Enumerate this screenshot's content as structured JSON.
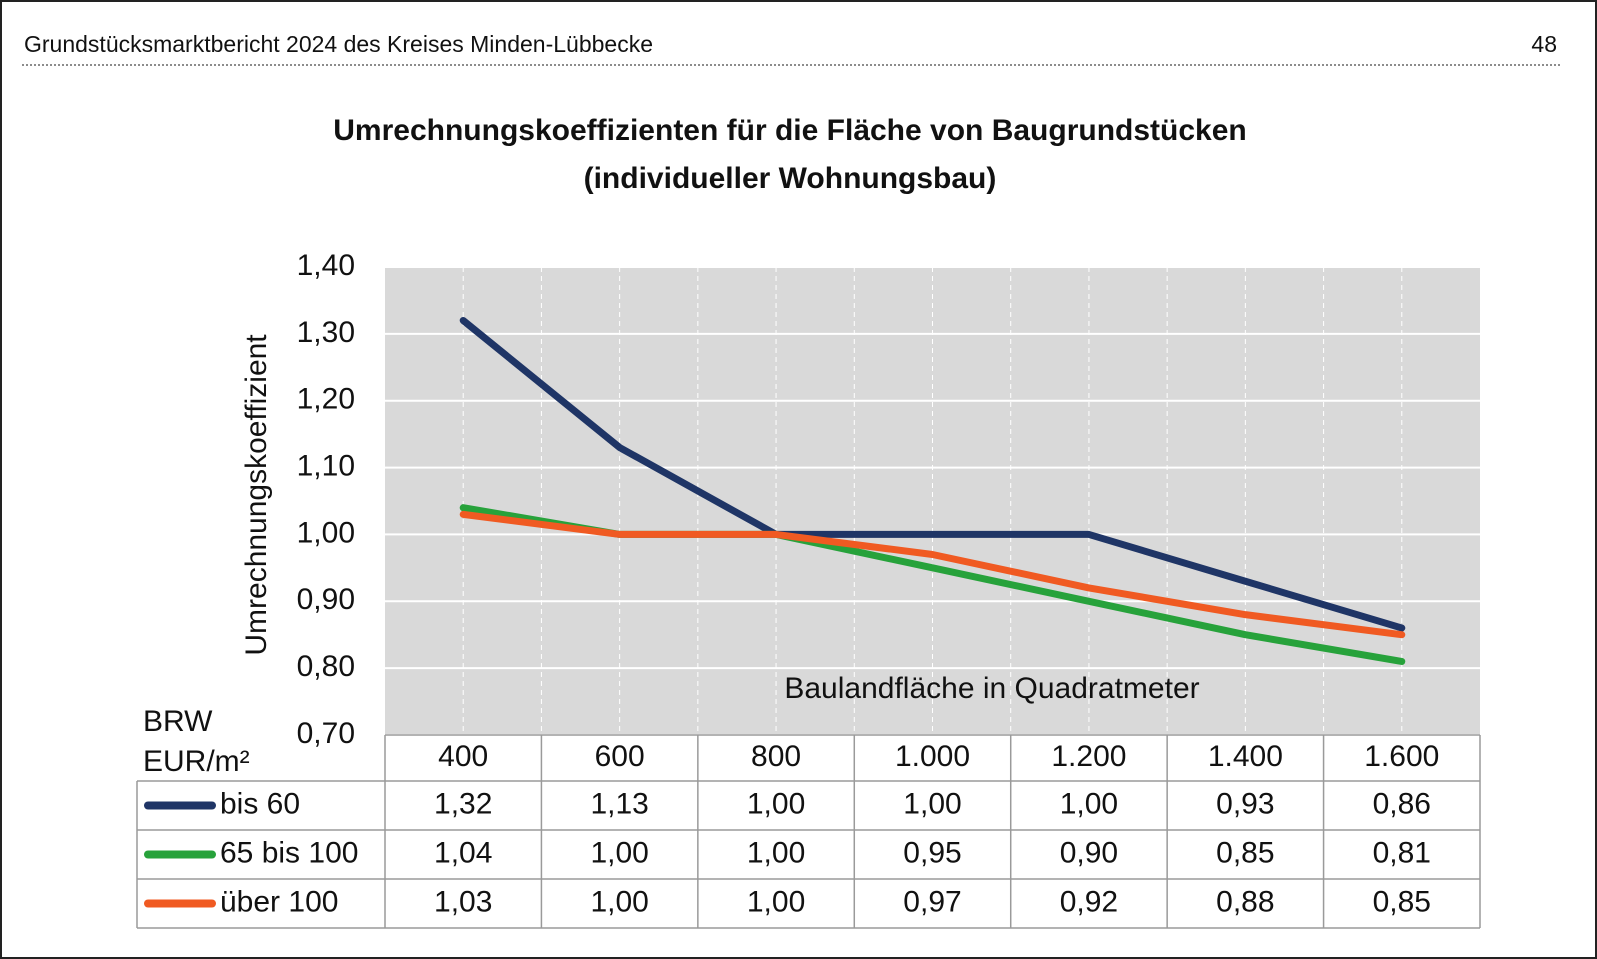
{
  "header": {
    "title": "Grundstücksmarktbericht 2024 des Kreises Minden-Lübbecke",
    "page": "48"
  },
  "chart_data": {
    "type": "line",
    "title": "Umrechnungskoeffizienten für die Fläche von Baugrundstücken",
    "subtitle": "(individueller Wohnungsbau)",
    "x_label": "Baulandfläche in Quadratmeter",
    "y_label": "Umrechnungskoeffizient",
    "table_corner": [
      "BRW",
      "EUR/m²"
    ],
    "categories": [
      "400",
      "600",
      "800",
      "1.000",
      "1.200",
      "1.400",
      "1.600"
    ],
    "series": [
      {
        "name": "bis 60",
        "color": "#1f3566",
        "values": [
          1.32,
          1.13,
          1.0,
          1.0,
          1.0,
          0.93,
          0.86
        ],
        "value_labels": [
          "1,32",
          "1,13",
          "1,00",
          "1,00",
          "1,00",
          "0,93",
          "0,86"
        ]
      },
      {
        "name": "65 bis 100",
        "color": "#27a23b",
        "values": [
          1.04,
          1.0,
          1.0,
          0.95,
          0.9,
          0.85,
          0.81
        ],
        "value_labels": [
          "1,04",
          "1,00",
          "1,00",
          "0,95",
          "0,90",
          "0,85",
          "0,81"
        ]
      },
      {
        "name": "über 100",
        "color": "#f05a22",
        "values": [
          1.03,
          1.0,
          1.0,
          0.97,
          0.92,
          0.88,
          0.85
        ],
        "value_labels": [
          "1,03",
          "1,00",
          "1,00",
          "0,97",
          "0,92",
          "0,88",
          "0,85"
        ]
      }
    ],
    "ylim": [
      0.7,
      1.4
    ],
    "yticks": [
      {
        "value": 0.7,
        "label": "0,70"
      },
      {
        "value": 0.8,
        "label": "0,80"
      },
      {
        "value": 0.9,
        "label": "0,90"
      },
      {
        "value": 1.0,
        "label": "1,00"
      },
      {
        "value": 1.1,
        "label": "1,10"
      },
      {
        "value": 1.2,
        "label": "1,20"
      },
      {
        "value": 1.3,
        "label": "1,30"
      },
      {
        "value": 1.4,
        "label": "1,40"
      }
    ],
    "grid": true
  }
}
